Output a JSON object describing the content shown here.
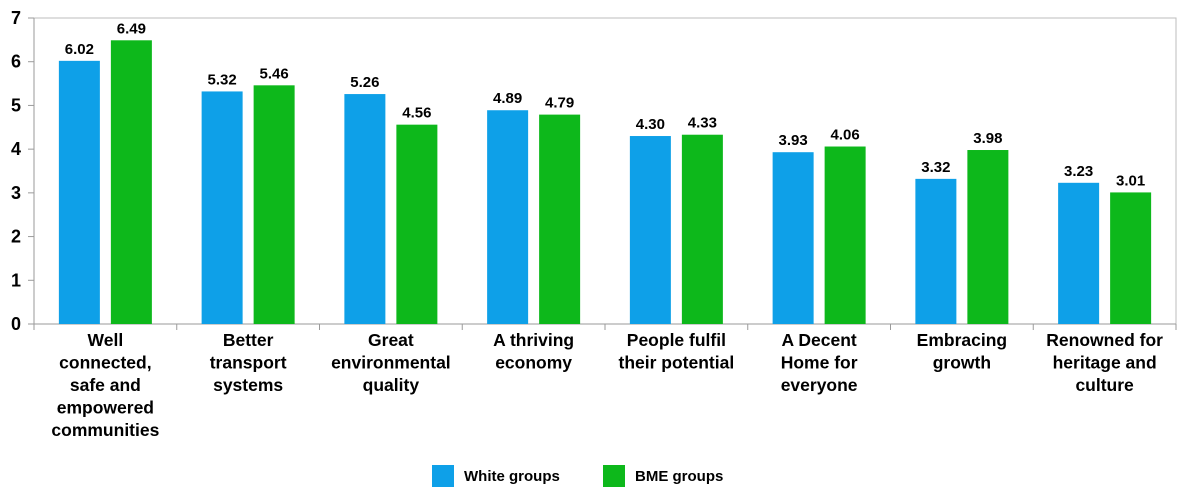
{
  "chart_data": {
    "type": "bar",
    "categories": [
      "Well connected, safe and empowered communities",
      "Better transport systems",
      "Great environmental quality",
      "A thriving economy",
      "People fulfil their potential",
      "A Decent Home for everyone",
      "Embracing growth",
      "Renowned for heritage and culture"
    ],
    "category_lines": [
      [
        "Well",
        "connected,",
        "safe and",
        "empowered",
        "communities"
      ],
      [
        "Better",
        "transport",
        "systems"
      ],
      [
        "Great",
        "environmental",
        "quality"
      ],
      [
        "A thriving",
        "economy"
      ],
      [
        "People fulfil",
        "their potential"
      ],
      [
        "A Decent",
        "Home for",
        "everyone"
      ],
      [
        "Embracing",
        "growth"
      ],
      [
        "Renowned for",
        "heritage and",
        "culture"
      ]
    ],
    "series": [
      {
        "name": "White groups",
        "color": "#0ea0e8",
        "values": [
          6.02,
          5.32,
          5.26,
          4.89,
          4.3,
          3.93,
          3.32,
          3.23
        ],
        "labels": [
          "6.02",
          "5.32",
          "5.26",
          "4.89",
          "4.30",
          "3.93",
          "3.32",
          "3.23"
        ]
      },
      {
        "name": "BME groups",
        "color": "#0db81b",
        "values": [
          6.49,
          5.46,
          4.56,
          4.79,
          4.33,
          4.06,
          3.98,
          3.01
        ],
        "labels": [
          "6.49",
          "5.46",
          "4.56",
          "4.79",
          "4.33",
          "4.06",
          "3.98",
          "3.01"
        ]
      }
    ],
    "ylim": [
      0,
      7
    ],
    "yticks": [
      "0",
      "1",
      "2",
      "3",
      "4",
      "5",
      "6",
      "7"
    ],
    "grid": false,
    "legend_position": "bottom-center",
    "title": "",
    "xlabel": "",
    "ylabel": ""
  }
}
